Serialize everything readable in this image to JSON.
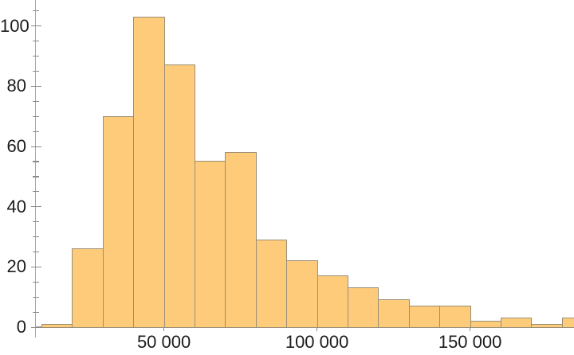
{
  "chart_data": {
    "type": "bar",
    "subtype": "histogram",
    "title": "",
    "xlabel": "",
    "ylabel": "",
    "bin_start": 10000,
    "bin_width": 10000,
    "bin_edges": [
      10000,
      20000,
      30000,
      40000,
      50000,
      60000,
      70000,
      80000,
      90000,
      100000,
      110000,
      120000,
      130000,
      140000,
      150000,
      160000,
      170000,
      180000,
      190000
    ],
    "counts": [
      1,
      26,
      70,
      103,
      87,
      55,
      58,
      29,
      22,
      17,
      13,
      9,
      7,
      7,
      2,
      3,
      1,
      3
    ],
    "x_major_ticks": [
      {
        "value": 50000,
        "label": "50 000"
      },
      {
        "value": 100000,
        "label": "100 000"
      },
      {
        "value": 150000,
        "label": "150 000"
      }
    ],
    "y_major_ticks": [
      {
        "value": 0,
        "label": "0"
      },
      {
        "value": 20,
        "label": "20"
      },
      {
        "value": 40,
        "label": "40"
      },
      {
        "value": 60,
        "label": "60"
      },
      {
        "value": 80,
        "label": "80"
      },
      {
        "value": 100,
        "label": "100"
      }
    ],
    "y_minor_step": 5,
    "ylim": [
      0,
      108.5
    ],
    "xlim": [
      8200,
      187600
    ],
    "grid": "off",
    "legend": "none",
    "colors": {
      "bar_fill": "#FDCB79",
      "bar_edge": "#9a8f76",
      "axis": "#a6a6a6",
      "tick": "#8c8c8c",
      "label": "#1c1c1c"
    }
  }
}
